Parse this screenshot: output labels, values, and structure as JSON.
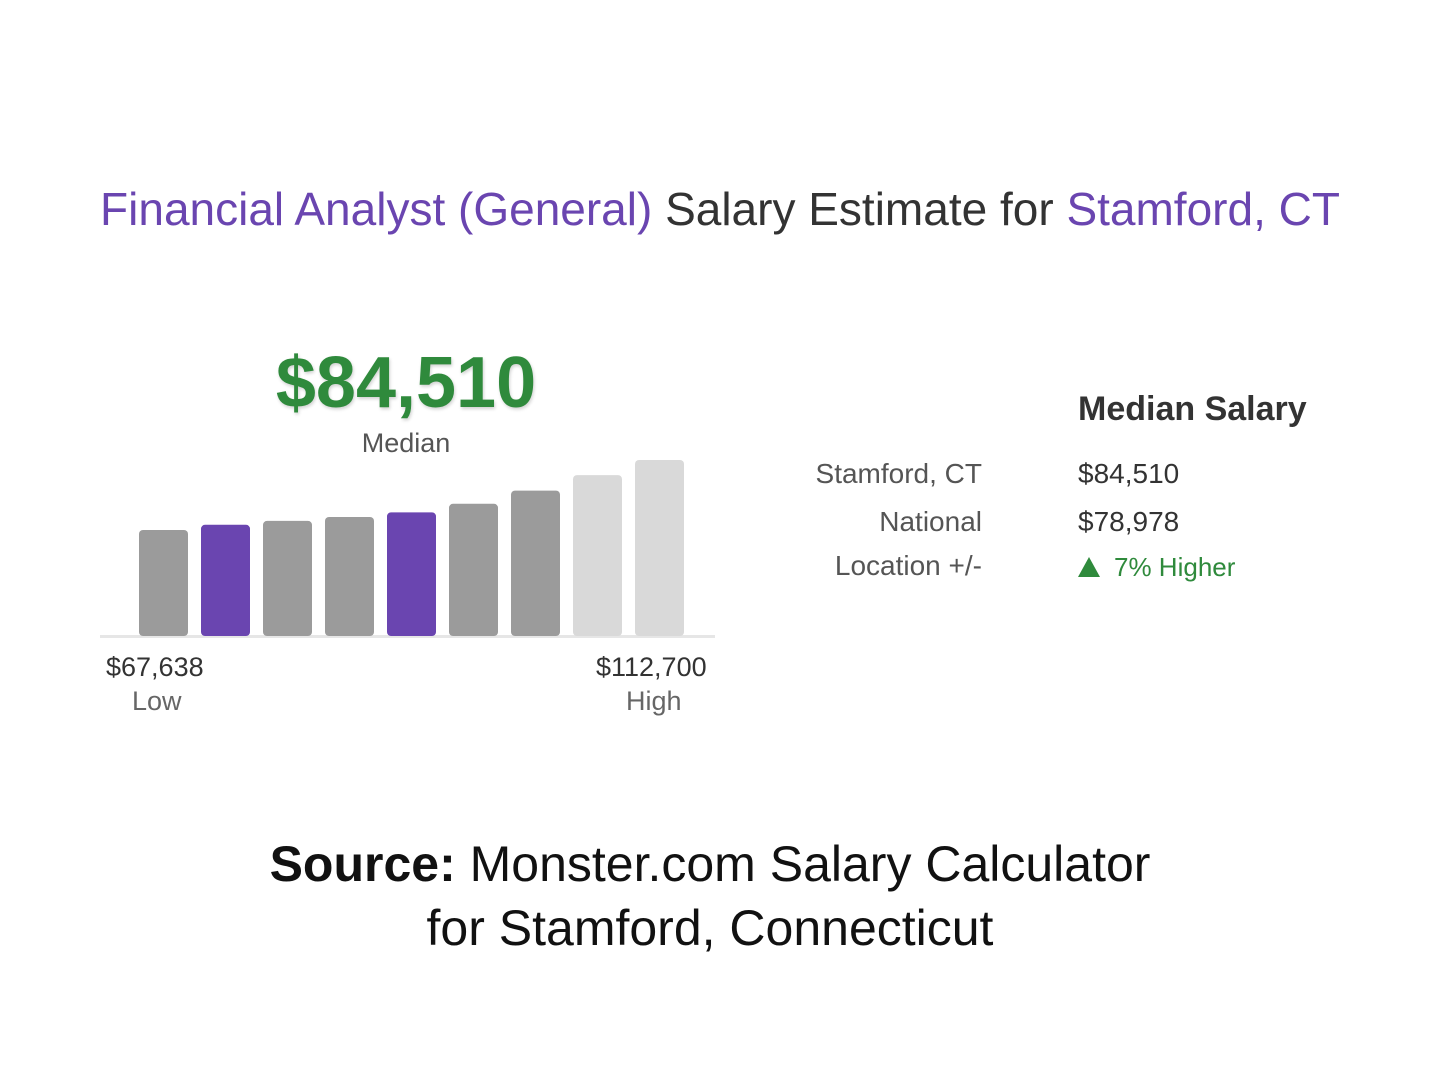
{
  "title": {
    "job": "Financial Analyst (General)",
    "middle": " Salary Estimate for ",
    "location": "Stamford, CT"
  },
  "median": {
    "value": "$84,510",
    "label": "Median"
  },
  "range": {
    "low_value": "$67,638",
    "low_label": "Low",
    "high_value": "$112,700",
    "high_label": "High"
  },
  "table": {
    "heading": "Median Salary",
    "rows": [
      {
        "label": "Stamford, CT",
        "value": "$84,510"
      },
      {
        "label": "National",
        "value": "$78,978"
      },
      {
        "label": "Location +/-",
        "value": "7% Higher"
      }
    ]
  },
  "source": {
    "label": "Source:",
    "line1": " Monster.com Salary Calculator",
    "line2": "for Stamford, Connecticut"
  },
  "colors": {
    "accent_purple": "#6a45b0",
    "median_green": "#2f8a3c",
    "bar_gray": "#9b9b9b",
    "bar_light": "#d9d9d9"
  },
  "chart_data": {
    "type": "bar",
    "values": [
      67638,
      71000,
      73500,
      76000,
      78978,
      84510,
      93000,
      103000,
      112700
    ],
    "highlight": [
      false,
      true,
      false,
      false,
      true,
      false,
      false,
      false,
      false
    ],
    "light": [
      false,
      false,
      false,
      false,
      false,
      false,
      false,
      true,
      true
    ],
    "ylim": [
      0,
      112700
    ],
    "grid": false,
    "legend": "none"
  }
}
